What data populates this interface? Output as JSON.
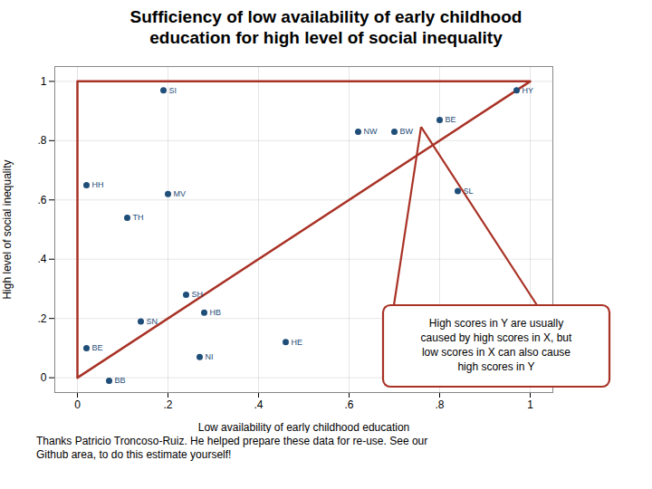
{
  "chart_data": {
    "type": "scatter",
    "title": "Sufficiency of low availability of early childhood\neducation for high level of social inequality",
    "xlabel": "Low availability of early childhood education",
    "ylabel": "High level of social inequality",
    "series": [
      {
        "type": "scatter",
        "color": "#1f4e79",
        "x": [
          0.19,
          0.97,
          0.62,
          0.7,
          0.8,
          0.84,
          0.02,
          0.2,
          0.11,
          0.24,
          0.28,
          0.14,
          0.02,
          0.27,
          0.46,
          0.07
        ],
        "values": [
          0.97,
          0.97,
          0.83,
          0.83,
          0.87,
          0.63,
          0.65,
          0.62,
          0.54,
          0.28,
          0.22,
          0.19,
          0.1,
          0.07,
          0.12,
          -0.01
        ],
        "labels": [
          "SI",
          "HY",
          "NW",
          "BW",
          "BE",
          "SL",
          "HH",
          "MV",
          "TH",
          "SH",
          "HB",
          "SN",
          "BE",
          "NI",
          "HE",
          "BB"
        ]
      },
      {
        "type": "line",
        "color": "#a93226",
        "x": [
          0.0,
          1.0,
          0.0,
          0.0
        ],
        "values": [
          0.0,
          1.0,
          1.0,
          0.0
        ]
      }
    ],
    "annotation": {
      "text": "High scores in Y are usually\ncaused by high scores in X, but\nlow scores in X can also cause\nhigh scores in Y",
      "x": 0.76,
      "y": 0.845,
      "color": "#a93226"
    },
    "caption": "Thanks Patricio Troncoso-Ruiz.  He helped prepare these data for re-use.  See our\nGithub area, to do this estimate yourself!",
    "xlim": [
      -0.05,
      1.05
    ],
    "ylim": [
      -0.05,
      1.05
    ],
    "xticks": [
      0,
      {
        "value": 0.2,
        "label": ".2"
      },
      {
        "value": 0.4,
        "label": ".4"
      },
      {
        "value": 0.6,
        "label": ".6"
      },
      {
        "value": 0.8,
        "label": ".8"
      },
      1
    ],
    "yticks": [
      0,
      {
        "value": 0.2,
        "label": ".2"
      },
      {
        "value": 0.4,
        "label": ".4"
      },
      {
        "value": 0.6,
        "label": ".6"
      },
      {
        "value": 0.8,
        "label": ".8"
      },
      1
    ],
    "grid": true
  }
}
